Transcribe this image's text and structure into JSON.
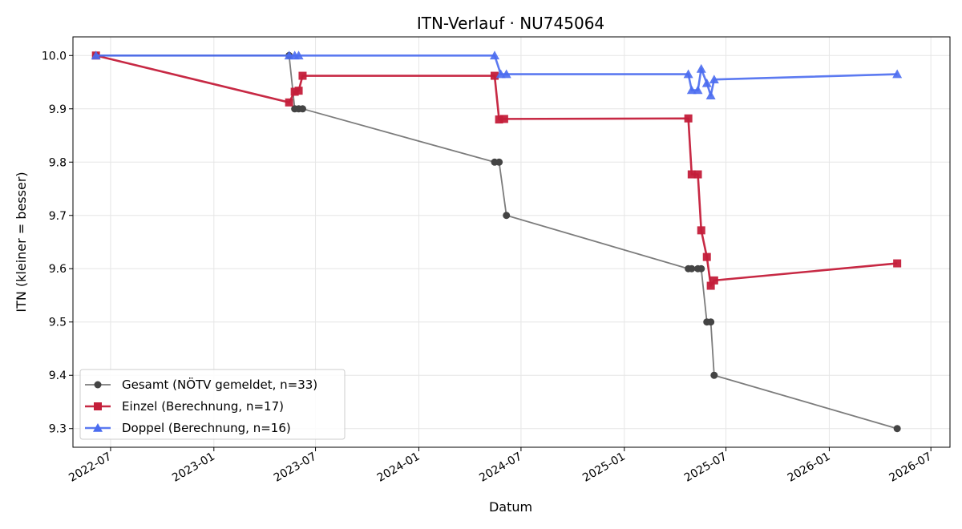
{
  "chart_data": {
    "type": "line",
    "title": "ITN-Verlauf · NU745064",
    "xlabel": "Datum",
    "ylabel": "ITN  (kleiner = besser)",
    "xlim": [
      "2022-04-25",
      "2026-08-04"
    ],
    "ylim": [
      9.265,
      10.035
    ],
    "x_ticks": [
      {
        "date": "2022-07-01",
        "label": "2022-07"
      },
      {
        "date": "2023-01-01",
        "label": "2023-01"
      },
      {
        "date": "2023-07-01",
        "label": "2023-07"
      },
      {
        "date": "2024-01-01",
        "label": "2024-01"
      },
      {
        "date": "2024-07-01",
        "label": "2024-07"
      },
      {
        "date": "2025-01-01",
        "label": "2025-01"
      },
      {
        "date": "2025-07-01",
        "label": "2025-07"
      },
      {
        "date": "2026-01-01",
        "label": "2026-01"
      },
      {
        "date": "2026-07-01",
        "label": "2026-07"
      }
    ],
    "y_ticks": [
      {
        "value": 9.3,
        "label": "9.3"
      },
      {
        "value": 9.4,
        "label": "9.4"
      },
      {
        "value": 9.5,
        "label": "9.5"
      },
      {
        "value": 9.6,
        "label": "9.6"
      },
      {
        "value": 9.7,
        "label": "9.7"
      },
      {
        "value": 9.8,
        "label": "9.8"
      },
      {
        "value": 9.9,
        "label": "9.9"
      },
      {
        "value": 10.0,
        "label": "10.0"
      }
    ],
    "grid": true,
    "legend_position": "bottom-left",
    "series": [
      {
        "name": "Gesamt (NÖTV gemeldet, n=33)",
        "color": "#444444",
        "marker": "circle",
        "points": [
          {
            "x": "2022-06-05",
            "y": 10.0
          },
          {
            "x": "2023-05-15",
            "y": 10.0
          },
          {
            "x": "2023-05-25",
            "y": 9.9
          },
          {
            "x": "2023-06-01",
            "y": 9.9
          },
          {
            "x": "2023-06-08",
            "y": 9.9
          },
          {
            "x": "2024-05-15",
            "y": 9.8
          },
          {
            "x": "2024-05-23",
            "y": 9.8
          },
          {
            "x": "2024-06-05",
            "y": 9.7
          },
          {
            "x": "2025-04-25",
            "y": 9.6
          },
          {
            "x": "2025-05-01",
            "y": 9.6
          },
          {
            "x": "2025-05-12",
            "y": 9.6
          },
          {
            "x": "2025-05-18",
            "y": 9.6
          },
          {
            "x": "2025-05-28",
            "y": 9.5
          },
          {
            "x": "2025-06-04",
            "y": 9.5
          },
          {
            "x": "2025-06-10",
            "y": 9.4
          },
          {
            "x": "2026-05-02",
            "y": 9.3
          }
        ]
      },
      {
        "name": "Einzel (Berechnung, n=17)",
        "color": "#c41e3a",
        "marker": "square",
        "points": [
          {
            "x": "2022-06-05",
            "y": 10.0
          },
          {
            "x": "2023-05-15",
            "y": 9.912
          },
          {
            "x": "2023-05-25",
            "y": 9.932
          },
          {
            "x": "2023-06-01",
            "y": 9.934
          },
          {
            "x": "2023-06-08",
            "y": 9.962
          },
          {
            "x": "2024-05-15",
            "y": 9.962
          },
          {
            "x": "2024-05-23",
            "y": 9.88
          },
          {
            "x": "2024-06-01",
            "y": 9.881
          },
          {
            "x": "2025-04-25",
            "y": 9.882
          },
          {
            "x": "2025-05-01",
            "y": 9.777
          },
          {
            "x": "2025-05-12",
            "y": 9.777
          },
          {
            "x": "2025-05-18",
            "y": 9.672
          },
          {
            "x": "2025-05-28",
            "y": 9.622
          },
          {
            "x": "2025-06-04",
            "y": 9.568
          },
          {
            "x": "2025-06-10",
            "y": 9.578
          },
          {
            "x": "2026-05-02",
            "y": 9.61
          }
        ]
      },
      {
        "name": "Doppel (Berechnung, n=16)",
        "color": "#4a6cf0",
        "marker": "triangle",
        "points": [
          {
            "x": "2022-06-05",
            "y": 10.0
          },
          {
            "x": "2023-05-15",
            "y": 10.0
          },
          {
            "x": "2023-05-25",
            "y": 10.0
          },
          {
            "x": "2023-06-01",
            "y": 10.0
          },
          {
            "x": "2024-05-15",
            "y": 10.0
          },
          {
            "x": "2024-05-26",
            "y": 9.965
          },
          {
            "x": "2024-06-05",
            "y": 9.965
          },
          {
            "x": "2025-04-25",
            "y": 9.965
          },
          {
            "x": "2025-05-01",
            "y": 9.935
          },
          {
            "x": "2025-05-12",
            "y": 9.935
          },
          {
            "x": "2025-05-18",
            "y": 9.975
          },
          {
            "x": "2025-05-28",
            "y": 9.948
          },
          {
            "x": "2025-06-04",
            "y": 9.925
          },
          {
            "x": "2025-06-10",
            "y": 9.955
          },
          {
            "x": "2026-05-02",
            "y": 9.965
          }
        ]
      }
    ]
  }
}
